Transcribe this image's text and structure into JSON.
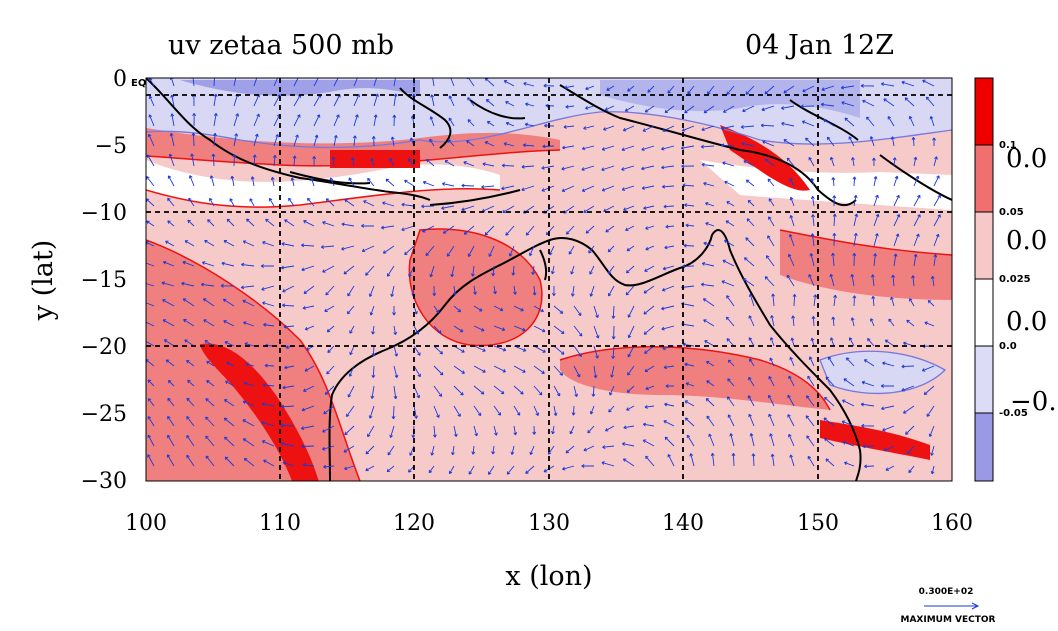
{
  "title_left": "uv zetaa 500 mb",
  "title_right": "04 Jan 12Z",
  "x_axis": {
    "label": "x (lon)",
    "ticks": [
      "100",
      "110",
      "120",
      "130",
      "140",
      "150",
      "160"
    ],
    "range": [
      100,
      160
    ]
  },
  "y_axis": {
    "label": "y (lat)",
    "ticks": [
      "0",
      "−5",
      "−10",
      "−15",
      "−20",
      "−25",
      "−30"
    ],
    "range": [
      -30,
      0
    ],
    "top_suffix": "EQ"
  },
  "grid": "dashed",
  "colorbar": {
    "small_labels": [
      "0.1",
      "0.05",
      "0.025",
      "0.0",
      "-0.05"
    ],
    "large_labels": [
      "0.0",
      "0.0",
      "0.0",
      "−0."
    ],
    "colors": [
      "#ee0000",
      "#f07070",
      "#f7c8c8",
      "#ffffff",
      "#dcdcf7",
      "#9999e6"
    ]
  },
  "max_vector": {
    "value": "0.300E+02",
    "label": "MAXIMUM VECTOR"
  },
  "colors": {
    "strong_positive": "#ee1111",
    "positive": "#f08080",
    "weak_positive": "#f7caca",
    "neutral": "#ffffff",
    "weak_negative": "#d8d8f5",
    "negative": "#a0a0e8",
    "vector": "#1a3ad9",
    "coast": "#000000"
  }
}
